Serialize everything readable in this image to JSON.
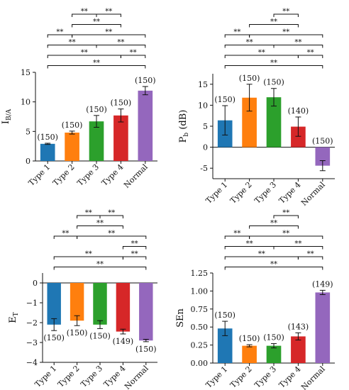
{
  "chart_data": [
    {
      "type": "bar",
      "title": "",
      "xlabel": "",
      "ylabel": "I_B/A",
      "ylabel_main": "I",
      "ylabel_sub": "B/A",
      "categories": [
        "Type 1",
        "Type 2",
        "Type 3",
        "Type 4",
        "Normal"
      ],
      "values": [
        2.9,
        4.8,
        6.7,
        7.7,
        11.9
      ],
      "errors": [
        0.1,
        0.25,
        1.0,
        1.1,
        0.7
      ],
      "counts": [
        "(150)",
        "(150)",
        "(150)",
        "(150)",
        "(150)"
      ],
      "ylim": [
        0,
        15
      ],
      "yticks": [
        0,
        5,
        10,
        15
      ],
      "ytick_labels": [
        "0",
        "5",
        "10",
        "15"
      ],
      "significance": [
        {
          "from": 1,
          "to": 2,
          "label": "**"
        },
        {
          "from": 2,
          "to": 3,
          "label": "**"
        },
        {
          "from": 1,
          "to": 3,
          "label": "**"
        },
        {
          "from": 0,
          "to": 1,
          "label": "**"
        },
        {
          "from": 1,
          "to": 4,
          "label": "**"
        },
        {
          "from": 0,
          "to": 2,
          "label": "**"
        },
        {
          "from": 2,
          "to": 4,
          "label": "**"
        },
        {
          "from": 0,
          "to": 3,
          "label": "**"
        },
        {
          "from": 3,
          "to": 4,
          "label": "**"
        },
        {
          "from": 0,
          "to": 4,
          "label": "**"
        }
      ]
    },
    {
      "type": "bar",
      "title": "",
      "xlabel": "",
      "ylabel": "P_b (dB)",
      "ylabel_main": "P",
      "ylabel_sub": "b",
      "ylabel_suffix": " (dB)",
      "categories": [
        "Type 1",
        "Type 2",
        "Type 3",
        "Type 4",
        "Normal"
      ],
      "values": [
        6.4,
        11.8,
        11.9,
        4.9,
        -4.4
      ],
      "errors": [
        3.5,
        3.2,
        2.1,
        2.3,
        1.2
      ],
      "counts": [
        "(150)",
        "(150)",
        "(150)",
        "(140)",
        "(150)"
      ],
      "ylim": [
        -7.5,
        17.5
      ],
      "yticks": [
        -5,
        0,
        5,
        10,
        15
      ],
      "ytick_labels": [
        "-5",
        "0",
        "5",
        "10",
        "15"
      ],
      "significance": [
        {
          "from": 2,
          "to": 3,
          "label": "**"
        },
        {
          "from": 1,
          "to": 3,
          "label": "**"
        },
        {
          "from": 0,
          "to": 1,
          "label": "**"
        },
        {
          "from": 1,
          "to": 4,
          "label": "**"
        },
        {
          "from": 0,
          "to": 2,
          "label": "**"
        },
        {
          "from": 2,
          "to": 4,
          "label": "**"
        },
        {
          "from": 0,
          "to": 3,
          "label": "**"
        },
        {
          "from": 3,
          "to": 4,
          "label": "**"
        },
        {
          "from": 0,
          "to": 4,
          "label": "**"
        }
      ]
    },
    {
      "type": "bar",
      "title": "",
      "xlabel": "",
      "ylabel": "E_T",
      "ylabel_main": "E",
      "ylabel_sub": "T",
      "categories": [
        "Type 1",
        "Type 2",
        "Type 3",
        "Type 4",
        "Normal"
      ],
      "values": [
        -2.1,
        -1.9,
        -2.1,
        -2.45,
        -2.9
      ],
      "errors": [
        0.3,
        0.25,
        0.2,
        0.12,
        0.06
      ],
      "counts": [
        "(150)",
        "(150)",
        "(150)",
        "(149)",
        "(150)"
      ],
      "ylim": [
        -4,
        0.5
      ],
      "yticks": [
        -4,
        -3,
        -2,
        -1,
        0
      ],
      "ytick_labels": [
        "−4",
        "−3",
        "−2",
        "−1",
        "0"
      ],
      "significance": [
        {
          "from": 1,
          "to": 2,
          "label": "**"
        },
        {
          "from": 2,
          "to": 3,
          "label": "**"
        },
        {
          "from": 1,
          "to": 3,
          "label": "**"
        },
        {
          "from": 0,
          "to": 1,
          "label": "**"
        },
        {
          "from": 1,
          "to": 4,
          "label": "**"
        },
        {
          "from": 3,
          "to": 4,
          "label": "**"
        },
        {
          "from": 0,
          "to": 3,
          "label": "**"
        },
        {
          "from": 3,
          "to": 4,
          "label": "**"
        },
        {
          "from": 0,
          "to": 4,
          "label": "**"
        }
      ]
    },
    {
      "type": "bar",
      "title": "",
      "xlabel": "",
      "ylabel": "SEn",
      "ylabel_main": "SEn",
      "ylabel_sub": "",
      "categories": [
        "Type 1",
        "Type 2",
        "Type 3",
        "Type 4",
        "Normal"
      ],
      "values": [
        0.48,
        0.24,
        0.24,
        0.37,
        0.98
      ],
      "errors": [
        0.1,
        0.015,
        0.03,
        0.05,
        0.03
      ],
      "counts": [
        "(150)",
        "(150)",
        "(150)",
        "(143)",
        "(149)"
      ],
      "ylim": [
        0,
        1.25
      ],
      "yticks": [
        0,
        0.25,
        0.5,
        0.75,
        1.0,
        1.25
      ],
      "ytick_labels": [
        "0.00",
        "0.25",
        "0.50",
        "0.75",
        "1.00",
        "1.25"
      ],
      "significance": [
        {
          "from": 2,
          "to": 3,
          "label": "**"
        },
        {
          "from": 1,
          "to": 3,
          "label": "**"
        },
        {
          "from": 0,
          "to": 1,
          "label": "**"
        },
        {
          "from": 1,
          "to": 4,
          "label": "**"
        },
        {
          "from": 0,
          "to": 2,
          "label": "**"
        },
        {
          "from": 2,
          "to": 4,
          "label": "**"
        },
        {
          "from": 0,
          "to": 3,
          "label": "**"
        },
        {
          "from": 3,
          "to": 4,
          "label": "**"
        },
        {
          "from": 0,
          "to": 4,
          "label": "**"
        }
      ]
    }
  ],
  "bar_colors": [
    "#1f77b4",
    "#ff7f0e",
    "#2ca02c",
    "#d62728",
    "#9467bd"
  ]
}
